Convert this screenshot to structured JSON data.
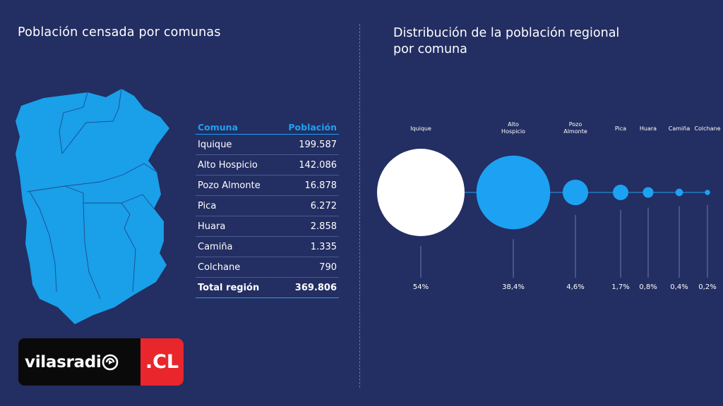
{
  "left": {
    "title": "Población censada por comunas"
  },
  "right": {
    "title": "Distribución de la población regional por comuna"
  },
  "table": {
    "headers": [
      "Comuna",
      "Población"
    ],
    "rows": [
      [
        "Iquique",
        "199.587"
      ],
      [
        "Alto Hospicio",
        "142.086"
      ],
      [
        "Pozo Almonte",
        "16.878"
      ],
      [
        "Pica",
        "6.272"
      ],
      [
        "Huara",
        "2.858"
      ],
      [
        "Camiña",
        "1.335"
      ],
      [
        "Colchane",
        "790"
      ]
    ],
    "total": [
      "Total región",
      "369.806"
    ]
  },
  "logo": {
    "text": "vilasradi",
    "suffix": ".CL"
  },
  "colors": {
    "background": "#232e62",
    "accent": "#1da1f2",
    "bubble_first": "#ffffff",
    "logo_red": "#e8262c"
  },
  "chart_data": {
    "type": "bubble",
    "title": "Distribución de la población regional por comuna",
    "categories": [
      "Iquique",
      "Alto Hospicio",
      "Pozo Almonte",
      "Pica",
      "Huara",
      "Camiña",
      "Colchane"
    ],
    "labels": [
      [
        "Iquique"
      ],
      [
        "Alto",
        "Hospicio"
      ],
      [
        "Pozo",
        "Almonte"
      ],
      [
        "Pica"
      ],
      [
        "Huara"
      ],
      [
        "Camiña"
      ],
      [
        "Colchane"
      ]
    ],
    "values": [
      54,
      38.4,
      4.6,
      1.7,
      0.8,
      0.4,
      0.2
    ],
    "value_labels": [
      "54%",
      "38,4%",
      "4,6%",
      "1,7%",
      "0,8%",
      "0,4%",
      "0,2%"
    ],
    "unit": "%"
  }
}
